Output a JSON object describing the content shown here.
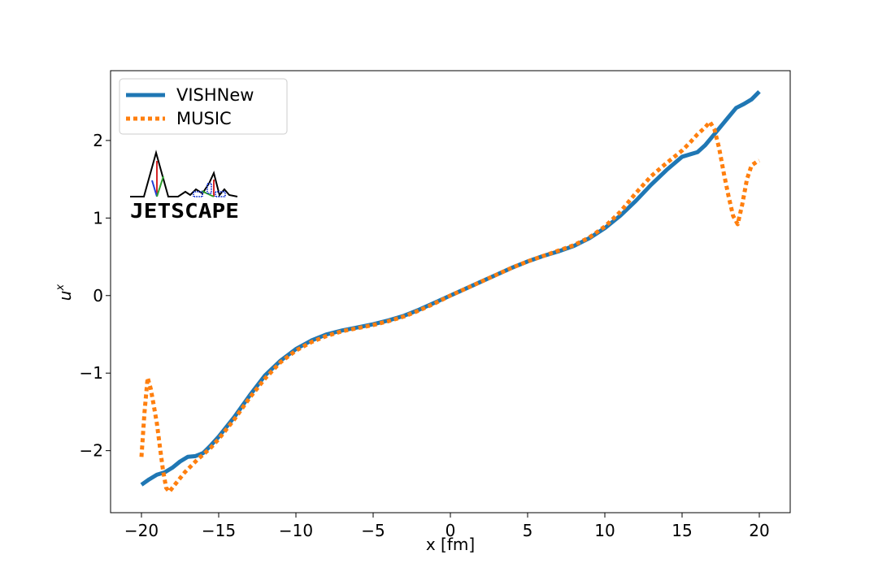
{
  "chart_data": {
    "type": "line",
    "xlabel": "x [fm]",
    "ylabel": "u",
    "ylabel_superscript": "x",
    "xlim": [
      -22,
      22
    ],
    "ylim": [
      -2.8,
      2.9
    ],
    "xticks": [
      -20,
      -15,
      -10,
      -5,
      0,
      5,
      10,
      15,
      20
    ],
    "xtick_labels": [
      "−20",
      "−15",
      "−10",
      "−5",
      "0",
      "5",
      "10",
      "15",
      "20"
    ],
    "yticks": [
      -2,
      -1,
      0,
      1,
      2
    ],
    "ytick_labels": [
      "−2",
      "−1",
      "0",
      "1",
      "2"
    ],
    "grid": false,
    "legend_position": "top-left",
    "logo_text": "JETSCAPE",
    "series": [
      {
        "name": "VISHNew",
        "color": "#1f77b4",
        "style": "solid",
        "x": [
          -20,
          -19.5,
          -19,
          -18.5,
          -18,
          -17.5,
          -17,
          -16.5,
          -16,
          -15.5,
          -15,
          -14,
          -13,
          -12,
          -11,
          -10,
          -9,
          -8,
          -7,
          -6,
          -5,
          -4,
          -3,
          -2,
          -1,
          0,
          1,
          2,
          3,
          4,
          5,
          6,
          7,
          8,
          9,
          10,
          11,
          12,
          13,
          14,
          15,
          15.5,
          16,
          16.5,
          17,
          17.5,
          18,
          18.5,
          19,
          19.5,
          20
        ],
        "y": [
          -2.44,
          -2.37,
          -2.31,
          -2.28,
          -2.22,
          -2.14,
          -2.08,
          -2.07,
          -2.03,
          -1.93,
          -1.82,
          -1.57,
          -1.29,
          -1.03,
          -0.84,
          -0.69,
          -0.58,
          -0.5,
          -0.45,
          -0.41,
          -0.37,
          -0.32,
          -0.26,
          -0.18,
          -0.09,
          0.0,
          0.09,
          0.18,
          0.27,
          0.36,
          0.44,
          0.51,
          0.57,
          0.64,
          0.74,
          0.87,
          1.03,
          1.22,
          1.43,
          1.62,
          1.79,
          1.82,
          1.85,
          1.94,
          2.06,
          2.18,
          2.3,
          2.42,
          2.47,
          2.53,
          2.63
        ]
      },
      {
        "name": "MUSIC",
        "color": "#ff7f0e",
        "style": "dotted",
        "x": [
          -20,
          -19.8,
          -19.6,
          -19.4,
          -19.2,
          -19,
          -18.8,
          -18.6,
          -18.4,
          -18.2,
          -18,
          -17.6,
          -17.2,
          -16.8,
          -16.4,
          -16,
          -15.5,
          -15,
          -14,
          -13,
          -12,
          -11,
          -10,
          -9,
          -8,
          -7,
          -6,
          -5,
          -4,
          -3,
          -2,
          -1,
          0,
          1,
          2,
          3,
          4,
          5,
          6,
          7,
          8,
          9,
          10,
          11,
          12,
          13,
          14,
          15,
          15.5,
          16,
          16.5,
          16.8,
          17.1,
          17.4,
          17.7,
          18,
          18.3,
          18.6,
          18.9,
          19.2,
          19.5,
          19.8,
          20
        ],
        "y": [
          -2.08,
          -1.5,
          -1.06,
          -1.2,
          -1.42,
          -1.65,
          -1.96,
          -2.26,
          -2.48,
          -2.53,
          -2.48,
          -2.38,
          -2.28,
          -2.2,
          -2.12,
          -2.05,
          -1.96,
          -1.85,
          -1.6,
          -1.32,
          -1.07,
          -0.86,
          -0.71,
          -0.6,
          -0.52,
          -0.46,
          -0.42,
          -0.38,
          -0.33,
          -0.27,
          -0.19,
          -0.1,
          0.0,
          0.09,
          0.18,
          0.27,
          0.36,
          0.44,
          0.51,
          0.58,
          0.65,
          0.75,
          0.89,
          1.08,
          1.32,
          1.54,
          1.71,
          1.87,
          1.97,
          2.08,
          2.17,
          2.24,
          2.14,
          1.9,
          1.58,
          1.29,
          1.03,
          0.92,
          1.18,
          1.5,
          1.68,
          1.72,
          1.74
        ]
      }
    ]
  }
}
